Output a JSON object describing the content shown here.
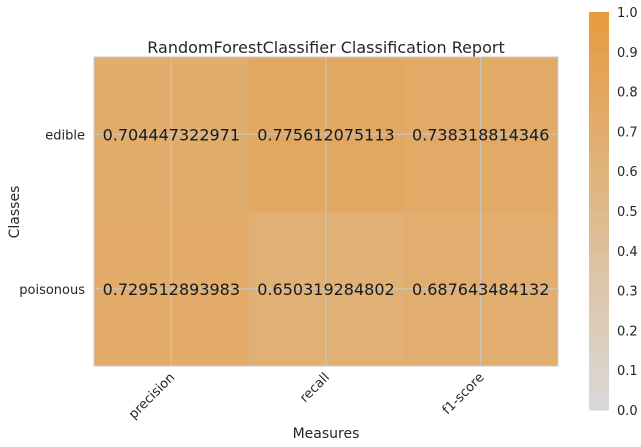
{
  "chart_data": {
    "type": "heatmap",
    "title": "RandomForestClassifier Classification Report",
    "xlabel": "Measures",
    "ylabel": "Classes",
    "x_categories": [
      "precision",
      "recall",
      "f1-score"
    ],
    "y_categories": [
      "edible",
      "poisonous"
    ],
    "values": [
      [
        0.704447322971,
        0.775612075113,
        0.738318814346
      ],
      [
        0.729512893983,
        0.650319284802,
        0.687643484132
      ]
    ],
    "value_labels": [
      [
        "0.704447322971",
        "0.775612075113",
        "0.738318814346"
      ],
      [
        "0.729512893983",
        "0.650319284802",
        "0.687643484132"
      ]
    ],
    "colorbar": {
      "range": [
        0.0,
        1.0
      ],
      "ticks": [
        "0.0",
        "0.1",
        "0.2",
        "0.3",
        "0.4",
        "0.5",
        "0.6",
        "0.7",
        "0.8",
        "0.9",
        "1.0"
      ]
    },
    "grid": true,
    "colors": {
      "low": "#d9d9d9",
      "high": "#e59a3f"
    }
  }
}
